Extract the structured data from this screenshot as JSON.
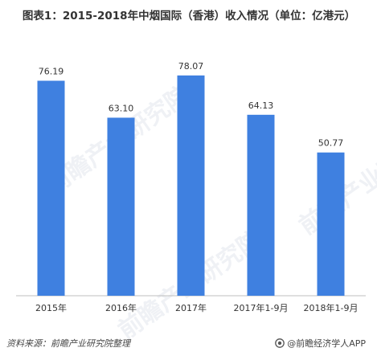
{
  "title": "图表1：2015-2018年中烟国际（香港）收入情况（单位：亿港元）",
  "source": "资料来源：前瞻产业研究院整理",
  "brand": "@前瞻经济学人APP",
  "watermark": "前瞻产业研究院",
  "colors": {
    "bar": "#3f80e0",
    "axis": "#bfbfbf",
    "text": "#333333"
  },
  "chart_data": {
    "type": "bar",
    "title": "图表1：2015-2018年中烟国际（香港）收入情况（单位：亿港元）",
    "categories": [
      "2015年",
      "2016年",
      "2017年",
      "2017年1-9月",
      "2018年1-9月"
    ],
    "values": [
      76.19,
      63.1,
      78.07,
      64.13,
      50.77
    ],
    "value_labels": [
      "76.19",
      "63.10",
      "78.07",
      "64.13",
      "50.77"
    ],
    "ylim": [
      0,
      90
    ],
    "grid": false,
    "legend": "none"
  }
}
